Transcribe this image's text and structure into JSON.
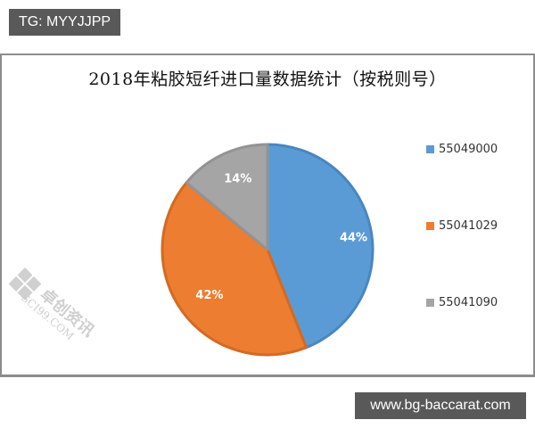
{
  "overlay": {
    "top_tag": "TG: MYYJJPP",
    "bottom_site": "www.bg-baccarat.com"
  },
  "watermark": {
    "text_cn": "卓创资讯",
    "text_en": "SCI99.COM"
  },
  "chart_data": {
    "type": "pie",
    "title": "2018年粘胶短纤进口量数据统计（按税则号）",
    "categories": [
      "55049000",
      "55041029",
      "55041090"
    ],
    "values": [
      44,
      42,
      14
    ],
    "labels": [
      "44%",
      "42%",
      "14%"
    ],
    "colors": [
      "#5b9bd5",
      "#ed7d31",
      "#a5a5a5"
    ],
    "legend_position": "right",
    "start_angle_deg": 0,
    "direction": "clockwise"
  }
}
